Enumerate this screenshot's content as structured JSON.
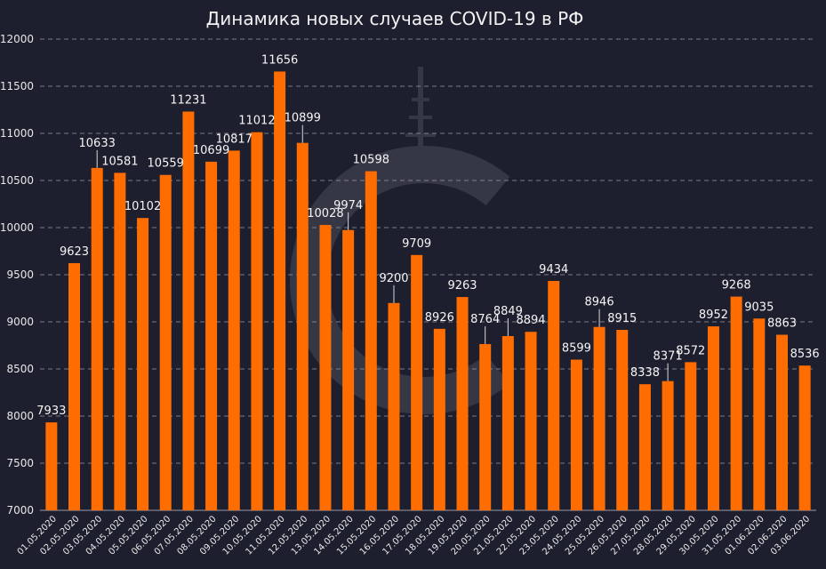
{
  "chart_data": {
    "type": "bar",
    "title": "Динамика новых случаев COVID-19 в РФ",
    "xlabel": "",
    "ylabel": "",
    "ylim": [
      7000,
      12000
    ],
    "yticks": [
      7000,
      7500,
      8000,
      8500,
      9000,
      9500,
      10000,
      10500,
      11000,
      11500,
      12000
    ],
    "grid": true,
    "legend": "none",
    "colors": {
      "background": "#1e1f2e",
      "bar": "#ff6d00",
      "grid": "#9a9aa8",
      "text": "#f2f2f2",
      "watermark": "#4a4b5c"
    },
    "categories": [
      "01.05.2020",
      "02.05.2020",
      "03.05.2020",
      "04.05.2020",
      "05.05.2020",
      "06.05.2020",
      "07.05.2020",
      "08.05.2020",
      "09.05.2020",
      "10.05.2020",
      "11.05.2020",
      "12.05.2020",
      "13.05.2020",
      "14.05.2020",
      "15.05.2020",
      "16.05.2020",
      "17.05.2020",
      "18.05.2020",
      "19.05.2020",
      "20.05.2020",
      "21.05.2020",
      "22.05.2020",
      "23.05.2020",
      "24.05.2020",
      "25.05.2020",
      "26.05.2020",
      "27.05.2020",
      "28.05.2020",
      "29.05.2020",
      "30.05.2020",
      "31.05.2020",
      "01.06.2020",
      "02.06.2020",
      "03.06.2020"
    ],
    "values": [
      7933,
      9623,
      10633,
      10581,
      10102,
      10559,
      11231,
      10699,
      10817,
      11012,
      11656,
      10899,
      10028,
      9974,
      10598,
      9200,
      9709,
      8926,
      9263,
      8764,
      8849,
      8894,
      9434,
      8599,
      8946,
      8915,
      8338,
      8371,
      8572,
      8952,
      9268,
      9035,
      8863,
      8536
    ]
  }
}
